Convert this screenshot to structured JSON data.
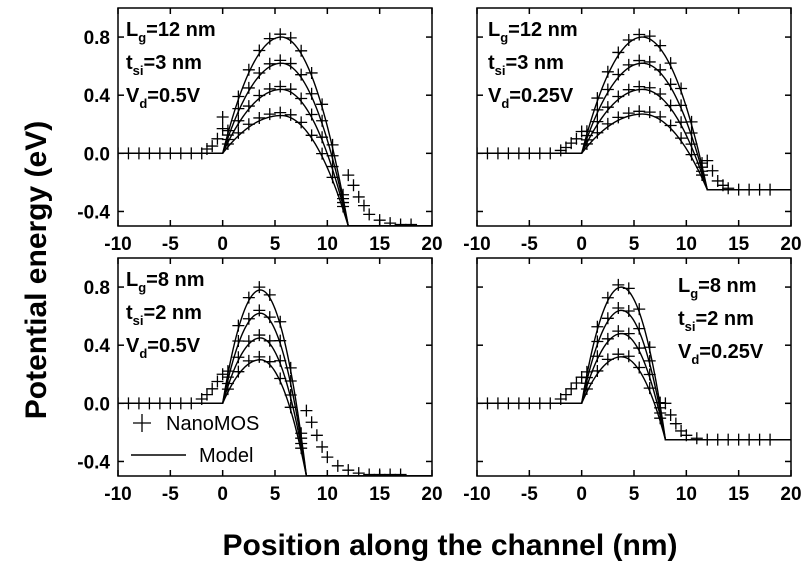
{
  "chart_data": {
    "type": "line",
    "xlabel": "Position along the channel (nm)",
    "ylabel": "Potential energy (eV)",
    "legend": {
      "placement": "bottom-left of lower-left panel",
      "entries": [
        {
          "label": "NanoMOS",
          "marker": "plus"
        },
        {
          "label": "Model",
          "marker": "line"
        }
      ]
    },
    "panels": [
      {
        "id": "top-left",
        "xlim": [
          -10,
          20
        ],
        "ylim": [
          -0.5,
          1.0
        ],
        "xticks": [
          "-10",
          "-5",
          "0",
          "5",
          "10",
          "15",
          "20"
        ],
        "yticks": [
          "0.8",
          "0.4",
          "0.0",
          "-0.4"
        ],
        "ytick_values": [
          0.8,
          0.4,
          0.0,
          -0.4
        ],
        "annotation": [
          {
            "main": "L",
            "sub": "g",
            "rest": "=12 nm"
          },
          {
            "main": "t",
            "sub": "si",
            "rest": "=3 nm"
          },
          {
            "main": "V",
            "sub": "d",
            "rest": "=0.5V"
          }
        ],
        "channel_length": 12,
        "drain_level": -0.5,
        "peak_position": 5.6,
        "barrier_heights": [
          0.8,
          0.62,
          0.44,
          0.26
        ],
        "nanomos_plus_points": [
          {
            "x": -10,
            "y": 0.0
          },
          {
            "x": -9,
            "y": 0.0
          },
          {
            "x": -8,
            "y": 0.0
          },
          {
            "x": -7,
            "y": 0.0
          },
          {
            "x": -6,
            "y": 0.0
          },
          {
            "x": -5,
            "y": 0.0
          },
          {
            "x": -4,
            "y": 0.0
          },
          {
            "x": -3,
            "y": 0.0
          },
          {
            "x": -2,
            "y": 0.0
          },
          {
            "x": -1.5,
            "y": 0.03
          },
          {
            "x": -1,
            "y": 0.05
          },
          {
            "x": -0.5,
            "y": 0.1
          },
          {
            "x": 0,
            "y": 0.17
          },
          {
            "x": 0,
            "y": 0.25
          },
          {
            "x": 12,
            "y": -0.15
          },
          {
            "x": 12.5,
            "y": -0.22
          },
          {
            "x": 13,
            "y": -0.3
          },
          {
            "x": 13.5,
            "y": -0.36
          },
          {
            "x": 14,
            "y": -0.42
          },
          {
            "x": 15,
            "y": -0.46
          },
          {
            "x": 16,
            "y": -0.48
          },
          {
            "x": 17,
            "y": -0.49
          },
          {
            "x": 18,
            "y": -0.49
          }
        ]
      },
      {
        "id": "top-right",
        "xlim": [
          -10,
          20
        ],
        "ylim": [
          -0.5,
          1.0
        ],
        "xticks": [
          "-10",
          "-5",
          "0",
          "5",
          "10",
          "15",
          "20"
        ],
        "yticks": [],
        "ytick_values": [
          0.8,
          0.4,
          0.0,
          -0.4
        ],
        "annotation": [
          {
            "main": "L",
            "sub": "g",
            "rest": "=12 nm"
          },
          {
            "main": "t",
            "sub": "si",
            "rest": "=3 nm"
          },
          {
            "main": "V",
            "sub": "d",
            "rest": "=0.25V"
          }
        ],
        "channel_length": 12,
        "drain_level": -0.25,
        "peak_position": 5.8,
        "barrier_heights": [
          0.8,
          0.62,
          0.44,
          0.27
        ],
        "nanomos_plus_points": [
          {
            "x": -10,
            "y": 0.0
          },
          {
            "x": -9,
            "y": 0.0
          },
          {
            "x": -8,
            "y": 0.0
          },
          {
            "x": -7,
            "y": 0.0
          },
          {
            "x": -6,
            "y": 0.0
          },
          {
            "x": -5,
            "y": 0.0
          },
          {
            "x": -4,
            "y": 0.0
          },
          {
            "x": -3,
            "y": 0.0
          },
          {
            "x": -2,
            "y": 0.02
          },
          {
            "x": -1.5,
            "y": 0.04
          },
          {
            "x": -1,
            "y": 0.07
          },
          {
            "x": -0.5,
            "y": 0.1
          },
          {
            "x": 0,
            "y": 0.15
          },
          {
            "x": 12,
            "y": -0.05
          },
          {
            "x": 12.5,
            "y": -0.12
          },
          {
            "x": 13,
            "y": -0.19
          },
          {
            "x": 13.5,
            "y": -0.22
          },
          {
            "x": 14,
            "y": -0.24
          },
          {
            "x": 15,
            "y": -0.25
          },
          {
            "x": 16,
            "y": -0.25
          },
          {
            "x": 17,
            "y": -0.25
          },
          {
            "x": 18,
            "y": -0.25
          }
        ]
      },
      {
        "id": "bottom-left",
        "xlim": [
          -10,
          20
        ],
        "ylim": [
          -0.5,
          1.0
        ],
        "xticks": [
          "-10",
          "-5",
          "0",
          "5",
          "10",
          "15",
          "20"
        ],
        "yticks": [
          "0.8",
          "0.4",
          "0.0",
          "-0.4"
        ],
        "ytick_values": [
          0.8,
          0.4,
          0.0,
          -0.4
        ],
        "annotation": [
          {
            "main": "L",
            "sub": "g",
            "rest": "=8 nm"
          },
          {
            "main": "t",
            "sub": "si",
            "rest": "=2 nm"
          },
          {
            "main": "V",
            "sub": "d",
            "rest": "=0.5V"
          }
        ],
        "channel_length": 8,
        "drain_level": -0.5,
        "peak_position": 3.6,
        "barrier_heights": [
          0.78,
          0.62,
          0.45,
          0.3
        ],
        "nanomos_plus_points": [
          {
            "x": -10,
            "y": 0.0
          },
          {
            "x": -9,
            "y": 0.0
          },
          {
            "x": -8,
            "y": 0.0
          },
          {
            "x": -7,
            "y": 0.0
          },
          {
            "x": -6,
            "y": 0.0
          },
          {
            "x": -5,
            "y": 0.0
          },
          {
            "x": -4,
            "y": 0.0
          },
          {
            "x": -3,
            "y": 0.0
          },
          {
            "x": -2,
            "y": 0.03
          },
          {
            "x": -1.5,
            "y": 0.06
          },
          {
            "x": -1,
            "y": 0.1
          },
          {
            "x": -0.5,
            "y": 0.15
          },
          {
            "x": 0,
            "y": 0.2
          },
          {
            "x": 8,
            "y": -0.05
          },
          {
            "x": 8.5,
            "y": -0.13
          },
          {
            "x": 9,
            "y": -0.22
          },
          {
            "x": 9.5,
            "y": -0.3
          },
          {
            "x": 10,
            "y": -0.37
          },
          {
            "x": 11,
            "y": -0.43
          },
          {
            "x": 12,
            "y": -0.46
          },
          {
            "x": 13,
            "y": -0.48
          },
          {
            "x": 14,
            "y": -0.49
          },
          {
            "x": 15,
            "y": -0.49
          },
          {
            "x": 16,
            "y": -0.49
          },
          {
            "x": 17,
            "y": -0.49
          }
        ]
      },
      {
        "id": "bottom-right",
        "xlim": [
          -10,
          20
        ],
        "ylim": [
          -0.5,
          1.0
        ],
        "xticks": [
          "-10",
          "-5",
          "0",
          "5",
          "10",
          "15",
          "20"
        ],
        "yticks": [],
        "ytick_values": [
          0.8,
          0.4,
          0.0,
          -0.4
        ],
        "annotation": [
          {
            "main": "L",
            "sub": "g",
            "rest": "=8 nm"
          },
          {
            "main": "t",
            "sub": "si",
            "rest": "=2 nm"
          },
          {
            "main": "V",
            "sub": "d",
            "rest": "=0.25V"
          }
        ],
        "channel_length": 8,
        "drain_level": -0.25,
        "peak_position": 3.8,
        "barrier_heights": [
          0.8,
          0.64,
          0.48,
          0.32
        ],
        "nanomos_plus_points": [
          {
            "x": -10,
            "y": 0.0
          },
          {
            "x": -9,
            "y": 0.0
          },
          {
            "x": -8,
            "y": 0.0
          },
          {
            "x": -7,
            "y": 0.0
          },
          {
            "x": -6,
            "y": 0.0
          },
          {
            "x": -5,
            "y": 0.0
          },
          {
            "x": -4,
            "y": 0.0
          },
          {
            "x": -3,
            "y": 0.0
          },
          {
            "x": -2,
            "y": 0.03
          },
          {
            "x": -1.5,
            "y": 0.06
          },
          {
            "x": -1,
            "y": 0.1
          },
          {
            "x": -0.5,
            "y": 0.14
          },
          {
            "x": 0,
            "y": 0.18
          },
          {
            "x": 8,
            "y": 0.0
          },
          {
            "x": 8.5,
            "y": -0.08
          },
          {
            "x": 9,
            "y": -0.14
          },
          {
            "x": 9.5,
            "y": -0.19
          },
          {
            "x": 10,
            "y": -0.22
          },
          {
            "x": 11,
            "y": -0.24
          },
          {
            "x": 12,
            "y": -0.25
          },
          {
            "x": 13,
            "y": -0.25
          },
          {
            "x": 14,
            "y": -0.25
          },
          {
            "x": 15,
            "y": -0.25
          },
          {
            "x": 16,
            "y": -0.25
          },
          {
            "x": 17,
            "y": -0.25
          },
          {
            "x": 18,
            "y": -0.25
          }
        ]
      }
    ]
  }
}
